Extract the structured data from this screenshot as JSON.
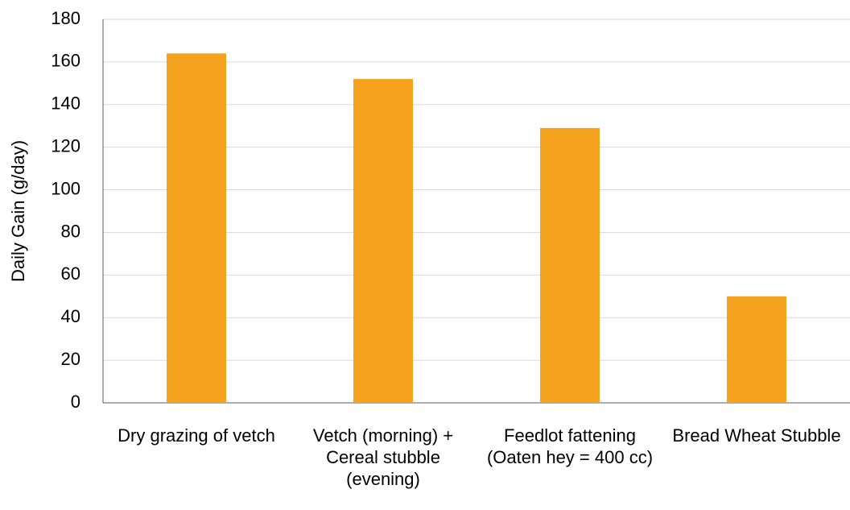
{
  "chart_data": {
    "type": "bar",
    "y_label": "Daily Gain (g/day)",
    "categories": [
      "Dry grazing of vetch",
      "Vetch (morning) + Cereal stubble (evening)",
      "Feedlot fattening (Oaten hey = 400 cc)",
      "Bread Wheat Stubble"
    ],
    "values": [
      164,
      152,
      129,
      50
    ],
    "color": "#f5a21f",
    "ylim": [
      0,
      180
    ],
    "yticks": [
      0,
      20,
      40,
      60,
      80,
      100,
      120,
      140,
      160,
      180
    ],
    "grid": true
  }
}
